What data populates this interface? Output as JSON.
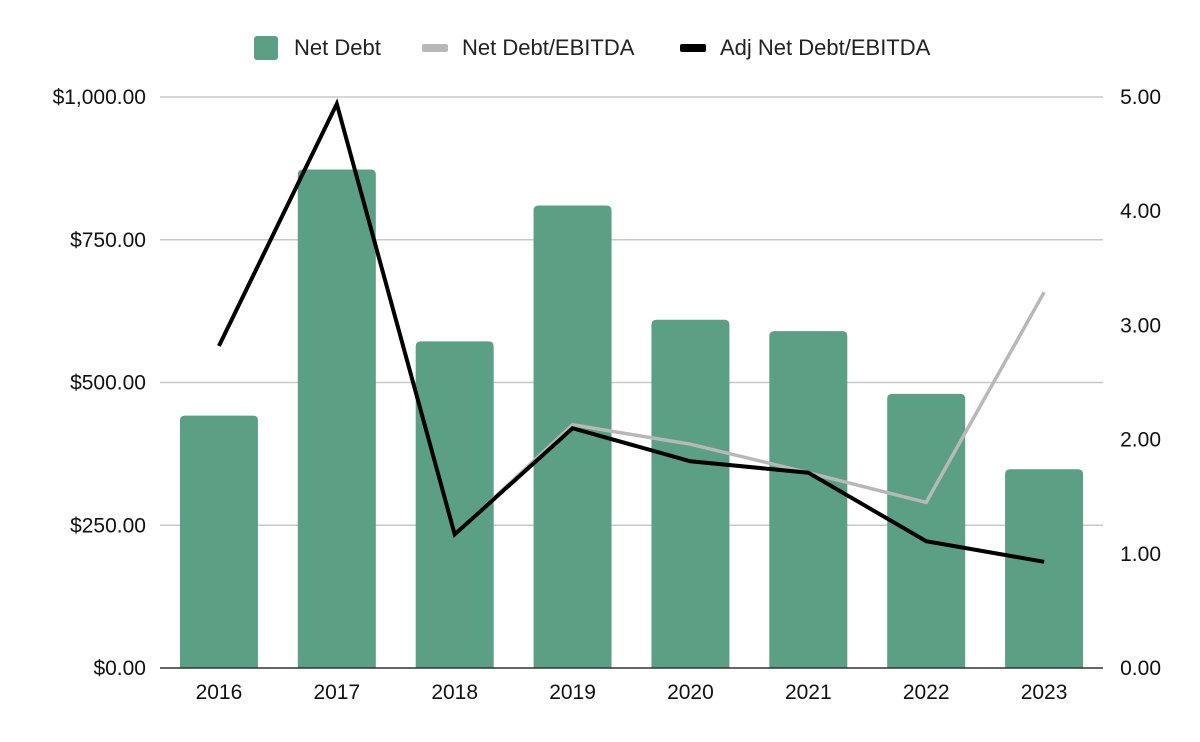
{
  "chart_data": {
    "type": "bar",
    "title": "",
    "categories": [
      "2016",
      "2017",
      "2018",
      "2019",
      "2020",
      "2021",
      "2022",
      "2023"
    ],
    "series": [
      {
        "name": "Net Debt",
        "kind": "bar",
        "axis": "left",
        "color": "#5ba084",
        "values": [
          442,
          873,
          572,
          810,
          610,
          590,
          480,
          348
        ]
      },
      {
        "name": "Net Debt/EBITDA",
        "kind": "line",
        "axis": "right",
        "color": "#b8b8b8",
        "values": [
          null,
          null,
          1.17,
          2.13,
          1.96,
          1.71,
          1.45,
          3.29
        ]
      },
      {
        "name": "Adj Net Debt/EBITDA",
        "kind": "line",
        "axis": "right",
        "color": "#000000",
        "values": [
          2.82,
          4.94,
          1.17,
          2.1,
          1.81,
          1.71,
          1.11,
          0.93
        ]
      }
    ],
    "y_left": {
      "range": [
        0,
        1000
      ],
      "ticks": [
        0,
        250,
        500,
        750,
        1000
      ],
      "tick_labels": [
        "$0.00",
        "$250.00",
        "$500.00",
        "$750.00",
        "$1,000.00"
      ]
    },
    "y_right": {
      "range": [
        0,
        5
      ],
      "ticks": [
        0,
        1,
        2,
        3,
        4,
        5
      ],
      "tick_labels": [
        "0.00",
        "1.00",
        "2.00",
        "3.00",
        "4.00",
        "5.00"
      ]
    },
    "xlabel": "",
    "ylabel": "",
    "grid": true,
    "legend": "top-center"
  }
}
